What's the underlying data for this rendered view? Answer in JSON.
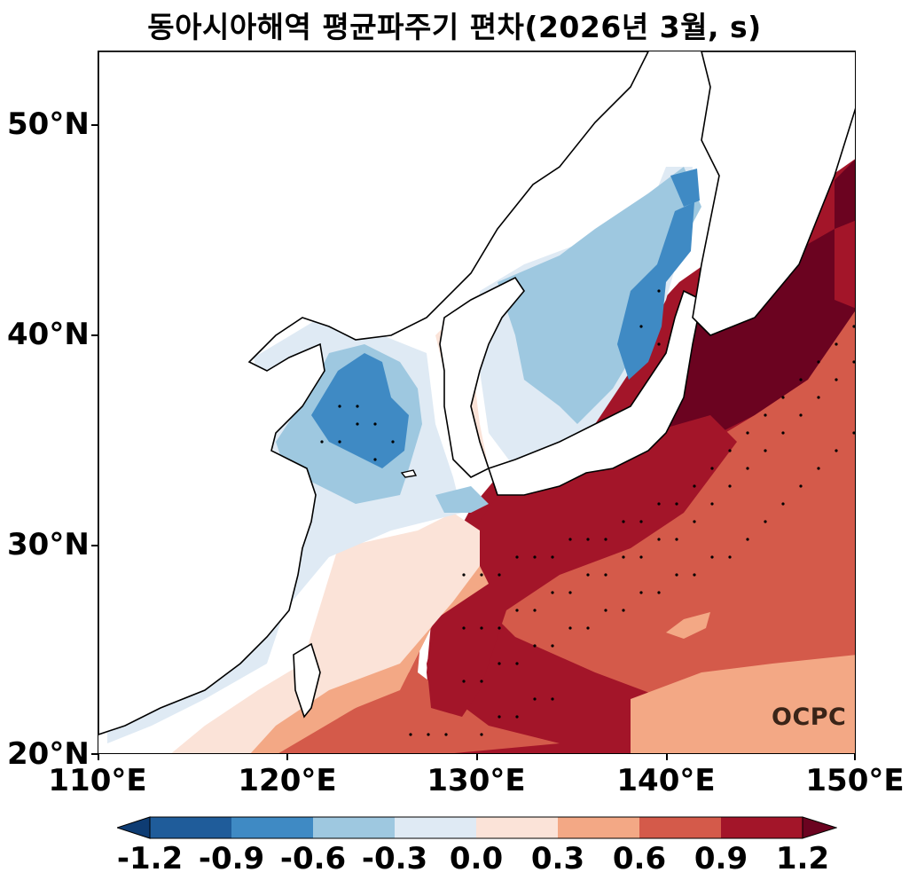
{
  "title": "동아시아해역 평균파주기 편차(2026년 3월, s)",
  "lat_ticks": [
    "50°N",
    "40°N",
    "30°N",
    "20°N"
  ],
  "lon_ticks": [
    "110°E",
    "120°E",
    "130°E",
    "140°E",
    "150°E"
  ],
  "logo": "OCPC",
  "colorbar": {
    "labels": [
      "-1.2",
      "-0.9",
      "-0.6",
      "-0.3",
      "0.0",
      "0.3",
      "0.6",
      "0.9",
      "1.2"
    ],
    "colors": [
      "#1f5c9a",
      "#3f8ac4",
      "#9ec8e0",
      "#dfeaf4",
      "#fbe3d8",
      "#f3a885",
      "#d45a4a",
      "#a31529",
      "#6b0320"
    ],
    "extend": "both"
  },
  "colors": {
    "strong_negative": "#1f5c9a",
    "negative": "#3f8ac4",
    "moderate_negative": "#9ec8e0",
    "weak_negative": "#dfeaf4",
    "weak_positive": "#fbe3d8",
    "moderate_positive": "#f3a885",
    "positive": "#d45a4a",
    "strong_positive": "#a31529",
    "very_strong_positive": "#6b0320"
  }
}
